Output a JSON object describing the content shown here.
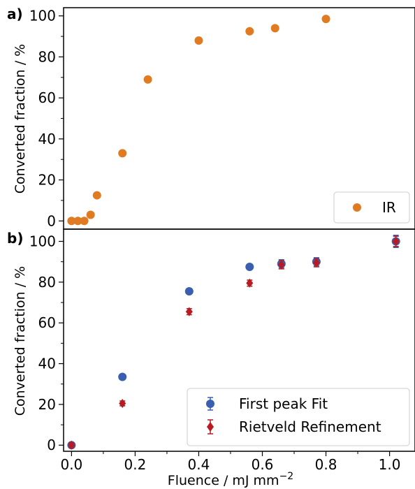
{
  "chart_data": [
    {
      "type": "scatter",
      "panel_label": "a)",
      "ylabel": "Converted fraction  /  %",
      "ylim": [
        -4,
        104
      ],
      "yticks": [
        0,
        20,
        40,
        60,
        80,
        100
      ],
      "xlim": [
        -0.025,
        1.08
      ],
      "legend": "bottom-right",
      "series": [
        {
          "name": "IR",
          "color": "#e07b22",
          "marker": "circle",
          "points": [
            {
              "x": 0.0,
              "y": 0
            },
            {
              "x": 0.02,
              "y": 0
            },
            {
              "x": 0.04,
              "y": 0
            },
            {
              "x": 0.06,
              "y": 3
            },
            {
              "x": 0.08,
              "y": 12.5
            },
            {
              "x": 0.16,
              "y": 33
            },
            {
              "x": 0.24,
              "y": 69
            },
            {
              "x": 0.4,
              "y": 88
            },
            {
              "x": 0.56,
              "y": 92.5
            },
            {
              "x": 0.64,
              "y": 94
            },
            {
              "x": 0.8,
              "y": 98.5
            }
          ]
        }
      ]
    },
    {
      "type": "scatter",
      "panel_label": "b)",
      "ylabel": "Converted fraction  /  %",
      "xlabel": "Fluence  /  mJ mm",
      "xlabel_sup": "−2",
      "ylim": [
        -3,
        106
      ],
      "yticks": [
        0,
        20,
        40,
        60,
        80,
        100
      ],
      "xlim": [
        -0.025,
        1.08
      ],
      "xticks": [
        0.0,
        0.2,
        0.4,
        0.6,
        0.8,
        1.0
      ],
      "xtick_labels": [
        "0.0",
        "0.2",
        "0.4",
        "0.6",
        "0.8",
        "1.0"
      ],
      "legend": "bottom-right",
      "series": [
        {
          "name": "First peak Fit",
          "color": "#3b5fb0",
          "marker": "circle",
          "points": [
            {
              "x": 0.0,
              "y": 0,
              "err": 1
            },
            {
              "x": 0.16,
              "y": 33.5,
              "err": 1
            },
            {
              "x": 0.37,
              "y": 75.5,
              "err": 1
            },
            {
              "x": 0.56,
              "y": 87.5,
              "err": 1
            },
            {
              "x": 0.66,
              "y": 89,
              "err": 2
            },
            {
              "x": 0.77,
              "y": 90,
              "err": 2
            },
            {
              "x": 1.02,
              "y": 100,
              "err": 3
            }
          ]
        },
        {
          "name": "Rietveld Refinement",
          "color": "#b81c23",
          "marker": "diamond",
          "points": [
            {
              "x": 0.0,
              "y": 0,
              "err": 1.2
            },
            {
              "x": 0.16,
              "y": 20.5,
              "err": 1.2
            },
            {
              "x": 0.37,
              "y": 65.5,
              "err": 1.5
            },
            {
              "x": 0.56,
              "y": 79.5,
              "err": 1.5
            },
            {
              "x": 0.66,
              "y": 88.5,
              "err": 2
            },
            {
              "x": 0.77,
              "y": 89.5,
              "err": 2
            },
            {
              "x": 1.02,
              "y": 100,
              "err": 2.5
            }
          ]
        }
      ]
    }
  ]
}
